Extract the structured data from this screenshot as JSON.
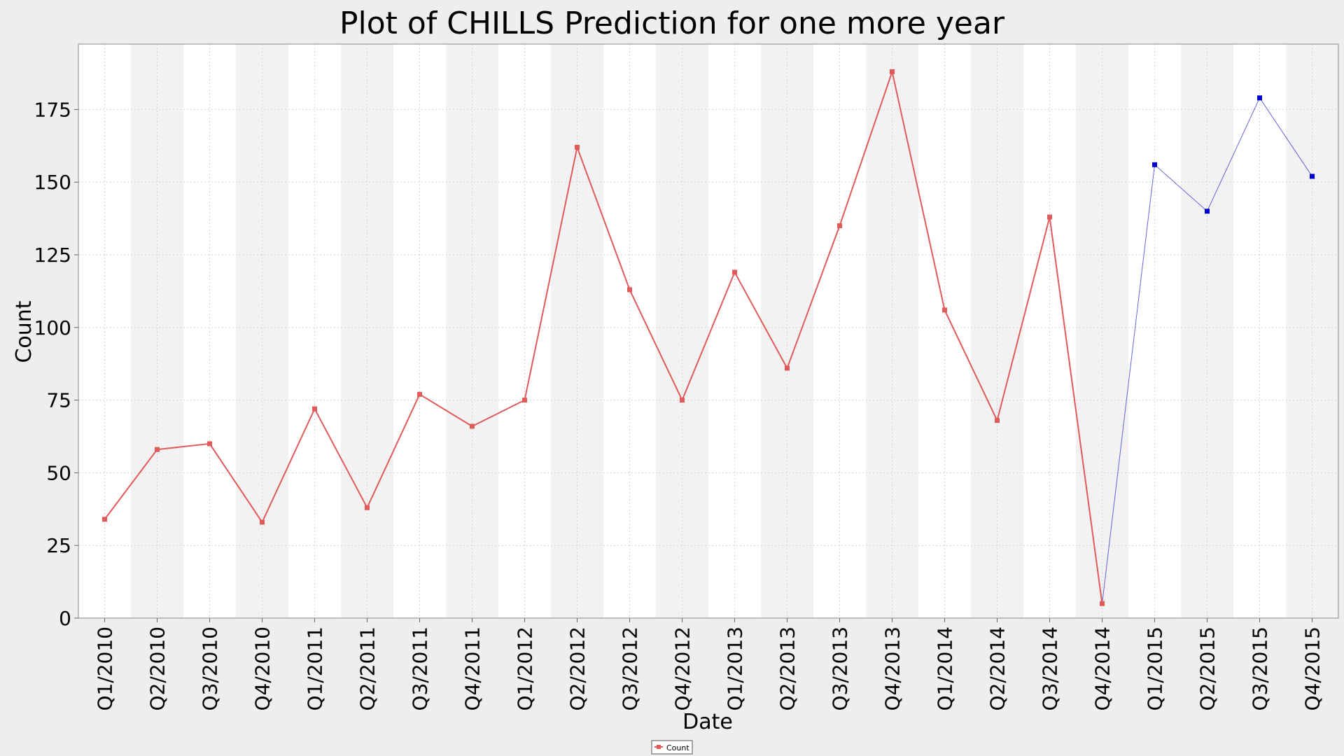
{
  "chart_data": {
    "type": "line",
    "title": "Plot of CHILLS Prediction for one more year",
    "xlabel": "Date",
    "ylabel": "Count",
    "ylim": [
      0,
      197.5
    ],
    "yticks": [
      0,
      25,
      50,
      75,
      100,
      125,
      150,
      175
    ],
    "grid": true,
    "legend_position": "bottom-center",
    "categories": [
      "Q1/2010",
      "Q2/2010",
      "Q3/2010",
      "Q4/2010",
      "Q1/2011",
      "Q2/2011",
      "Q3/2011",
      "Q4/2011",
      "Q1/2012",
      "Q2/2012",
      "Q3/2012",
      "Q4/2012",
      "Q1/2013",
      "Q2/2013",
      "Q3/2013",
      "Q4/2013",
      "Q1/2014",
      "Q2/2014",
      "Q3/2014",
      "Q4/2014",
      "Q1/2015",
      "Q2/2015",
      "Q3/2015",
      "Q4/2015"
    ],
    "series": [
      {
        "name": "Count",
        "color": "#e05a5a",
        "x": [
          "Q1/2010",
          "Q2/2010",
          "Q3/2010",
          "Q4/2010",
          "Q1/2011",
          "Q2/2011",
          "Q3/2011",
          "Q4/2011",
          "Q1/2012",
          "Q2/2012",
          "Q3/2012",
          "Q4/2012",
          "Q1/2013",
          "Q2/2013",
          "Q3/2013",
          "Q4/2013",
          "Q1/2014",
          "Q2/2014",
          "Q3/2014",
          "Q4/2014"
        ],
        "values": [
          34,
          58,
          60,
          33,
          72,
          38,
          77,
          66,
          75,
          162,
          113,
          75,
          119,
          86,
          135,
          188,
          106,
          68,
          138,
          5
        ]
      },
      {
        "color": "#0000cc",
        "x": [
          "Q4/2014",
          "Q1/2015",
          "Q2/2015",
          "Q3/2015",
          "Q4/2015"
        ],
        "values": [
          5,
          156,
          140,
          179,
          152
        ],
        "markers_from_index": 1
      }
    ],
    "legend": [
      {
        "label": "Count",
        "color": "#e05a5a"
      }
    ]
  }
}
